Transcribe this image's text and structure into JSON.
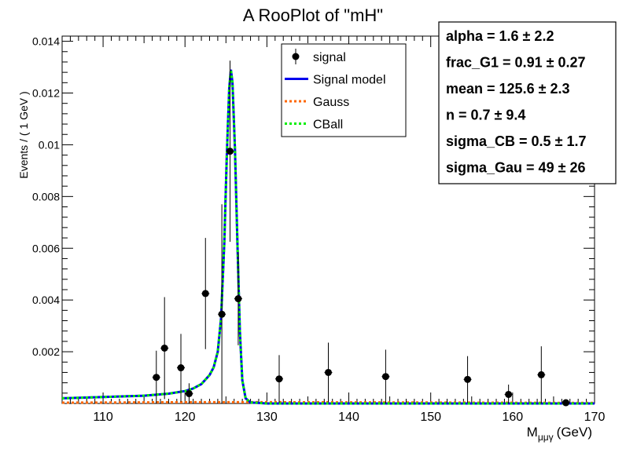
{
  "chart_data": {
    "type": "scatter",
    "title": "A RooPlot of \"mH\"",
    "xlabel": "M",
    "xlabel_sub": "μμγ",
    "xlabel_unit": "(GeV)",
    "ylabel": "Events / ( 1 GeV )",
    "xlim": [
      105,
      170
    ],
    "ylim": [
      0,
      0.0142
    ],
    "x_ticks": [
      110,
      120,
      130,
      140,
      150,
      160,
      170
    ],
    "y_ticks": [
      0.002,
      0.004,
      0.006,
      0.008,
      0.01,
      0.012,
      0.014
    ],
    "y_tick_labels": [
      "0.002",
      "0.004",
      "0.006",
      "0.008",
      "0.01",
      "0.012",
      "0.014"
    ],
    "legend": [
      {
        "label": "signal",
        "style": "marker",
        "color": "#000000"
      },
      {
        "label": "Signal model",
        "style": "solid",
        "color": "#0000ee"
      },
      {
        "label": "Gauss",
        "style": "dotted",
        "color": "#ff6600"
      },
      {
        "label": "CBall",
        "style": "dotted",
        "color": "#00ee00"
      }
    ],
    "points": [
      {
        "x": 116.5,
        "y": 0.00101,
        "err": 0.00103
      },
      {
        "x": 117.5,
        "y": 0.00214,
        "err": 0.00197
      },
      {
        "x": 119.5,
        "y": 0.00138,
        "err": 0.00131
      },
      {
        "x": 120.5,
        "y": 0.00038,
        "err": 0.0004
      },
      {
        "x": 122.5,
        "y": 0.00425,
        "err": 0.00215
      },
      {
        "x": 124.5,
        "y": 0.00345,
        "err": 0.00425
      },
      {
        "x": 125.5,
        "y": 0.00975,
        "err": 0.0035
      },
      {
        "x": 126.5,
        "y": 0.00405,
        "err": 0.0018
      },
      {
        "x": 131.5,
        "y": 0.00095,
        "err": 0.00092
      },
      {
        "x": 137.5,
        "y": 0.0012,
        "err": 0.00115
      },
      {
        "x": 144.5,
        "y": 0.00104,
        "err": 0.00104
      },
      {
        "x": 154.5,
        "y": 0.00093,
        "err": 0.0009
      },
      {
        "x": 159.5,
        "y": 0.00035,
        "err": 0.00038
      },
      {
        "x": 163.5,
        "y": 0.00111,
        "err": 0.0011
      },
      {
        "x": 166.5,
        "y": 3e-05,
        "err": 4e-05
      }
    ],
    "model_curve": {
      "x": [
        105,
        110,
        115,
        118,
        120,
        121,
        122,
        123,
        123.5,
        124,
        124.4,
        124.8,
        125.1,
        125.4,
        125.6,
        125.8,
        126.1,
        126.4,
        126.7,
        127.0,
        127.4,
        128,
        130,
        140,
        150,
        160,
        170
      ],
      "y": [
        0.0002,
        0.00025,
        0.0003,
        0.00038,
        0.00048,
        0.00058,
        0.00075,
        0.0011,
        0.0014,
        0.002,
        0.0033,
        0.0062,
        0.0095,
        0.0122,
        0.0129,
        0.0124,
        0.0098,
        0.0062,
        0.0028,
        0.0009,
        0.0002,
        4e-05,
        0.0,
        0.0,
        0.0,
        0.0,
        0.0
      ]
    },
    "gauss_curve": {
      "x": [
        105,
        120,
        125.6,
        130,
        145,
        170
      ],
      "y": [
        3e-05,
        5e-05,
        5e-05,
        5e-05,
        4e-05,
        2e-05
      ]
    },
    "stats_box": [
      {
        "name": "alpha",
        "value": "1.6",
        "error": "2.2"
      },
      {
        "name": "frac_G1",
        "value": "0.91",
        "error": "0.27"
      },
      {
        "name": "mean",
        "value": "125.6",
        "error": "2.3"
      },
      {
        "name": "n",
        "value": "0.7",
        "error": "9.4"
      },
      {
        "name": "sigma_CB",
        "value": "0.5",
        "error": "1.7"
      },
      {
        "name": "sigma_Gau",
        "value": "49",
        "error": "26"
      }
    ],
    "grid": false
  }
}
